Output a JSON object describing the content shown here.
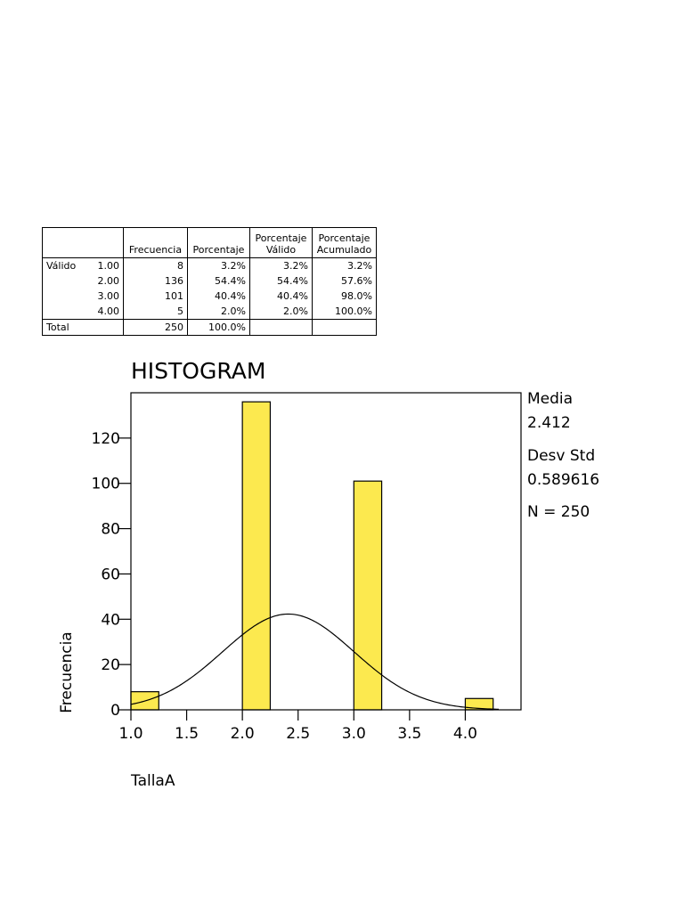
{
  "table": {
    "headers": [
      "",
      "",
      "Frecuencia",
      "Porcentaje",
      "Porcentaje\nVálido",
      "Porcentaje\nAcumulado"
    ],
    "group_label": "Válido",
    "rows": [
      {
        "value": "1.00",
        "freq": "8",
        "pct": "3.2%",
        "valid": "3.2%",
        "cum": "3.2%"
      },
      {
        "value": "2.00",
        "freq": "136",
        "pct": "54.4%",
        "valid": "54.4%",
        "cum": "57.6%"
      },
      {
        "value": "3.00",
        "freq": "101",
        "pct": "40.4%",
        "valid": "40.4%",
        "cum": "98.0%"
      },
      {
        "value": "4.00",
        "freq": "5",
        "pct": "2.0%",
        "valid": "2.0%",
        "cum": "100.0%"
      }
    ],
    "total": {
      "label": "Total",
      "freq": "250",
      "pct": "100.0%"
    }
  },
  "stats": {
    "mean_label": "Media",
    "mean_value": "2.412",
    "sd_label": "Desv Std",
    "sd_value": "0.589616",
    "n_label": "N = 250"
  },
  "chart_data": {
    "type": "bar",
    "title": "HISTOGRAM",
    "xlabel": "TallaA",
    "ylabel": "Frecuencia",
    "xlim": [
      1.0,
      4.5
    ],
    "ylim": [
      0,
      140
    ],
    "xticks": [
      "1.0",
      "1.5",
      "2.0",
      "2.5",
      "3.0",
      "3.5",
      "4.0"
    ],
    "yticks": [
      "0",
      "20",
      "40",
      "60",
      "80",
      "100",
      "120"
    ],
    "bins": [
      {
        "start": 1.0,
        "end": 1.25,
        "count": 8
      },
      {
        "start": 2.0,
        "end": 2.25,
        "count": 136
      },
      {
        "start": 3.0,
        "end": 3.25,
        "count": 101
      },
      {
        "start": 4.0,
        "end": 4.25,
        "count": 5
      }
    ],
    "normal_curve": {
      "mean": 2.412,
      "sd": 0.589616,
      "n": 250,
      "bin_width": 0.25
    },
    "bar_color": "#FCE94F",
    "grid": false
  }
}
